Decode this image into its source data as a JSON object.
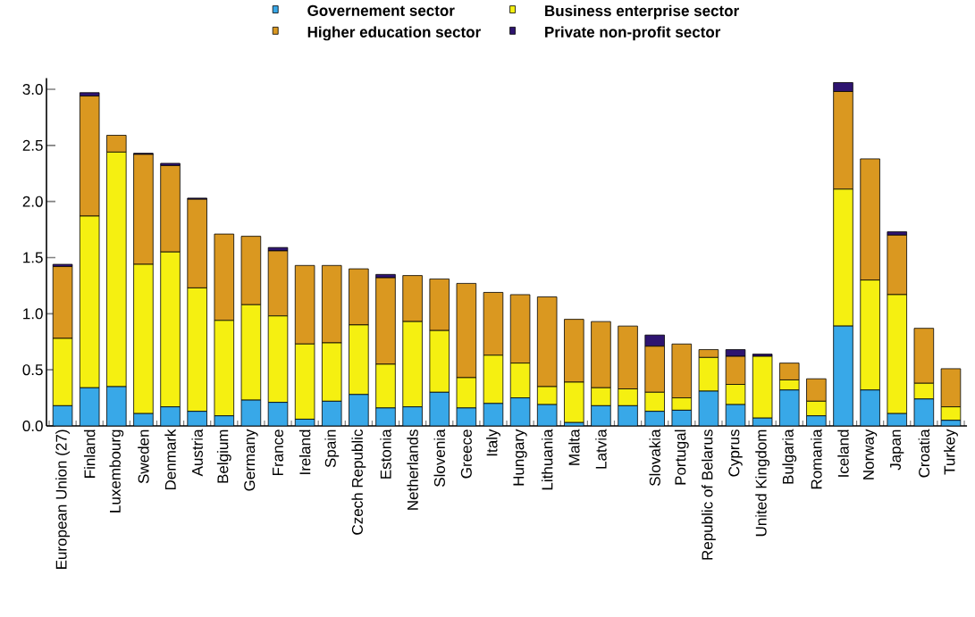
{
  "chart_data": {
    "type": "bar",
    "stacked": true,
    "legend": "top",
    "grid": false,
    "categories": [
      "European Union (27)",
      "Finland",
      "Luxembourg",
      "Sweden",
      "Denmark",
      "Austria",
      "Belgium",
      "Germany",
      "France",
      "Ireland",
      "Spain",
      "Czech Republic",
      "Estonia",
      "Netherlands",
      "Slovenia",
      "Greece",
      "Italy",
      "Hungary",
      "Lithuania",
      "Malta",
      "Latvia",
      null,
      "Slovakia",
      "Portugal",
      "Republic of Belarus",
      "Cyprus",
      "United Kingdom",
      "Bulgaria",
      "Romania",
      "Iceland",
      "Norway",
      "Japan",
      "Croatia",
      "Turkey"
    ],
    "series": [
      {
        "name": "Governement sector",
        "color": "#38a8e8",
        "values": [
          0.18,
          0.34,
          0.35,
          0.11,
          0.17,
          0.13,
          0.09,
          0.23,
          0.21,
          0.06,
          0.22,
          0.28,
          0.16,
          0.17,
          0.3,
          0.16,
          0.2,
          0.25,
          0.19,
          0.03,
          0.18,
          0.18,
          0.13,
          0.14,
          0.31,
          0.19,
          0.07,
          0.32,
          0.09,
          0.89,
          0.32,
          0.11,
          0.24,
          0.05
        ]
      },
      {
        "name": "Business enterprise sector",
        "color": "#f5f011",
        "values": [
          0.6,
          1.53,
          2.09,
          1.33,
          1.38,
          1.1,
          0.85,
          0.85,
          0.77,
          0.67,
          0.52,
          0.62,
          0.39,
          0.76,
          0.55,
          0.27,
          0.43,
          0.31,
          0.16,
          0.36,
          0.16,
          0.15,
          0.17,
          0.11,
          0.3,
          0.18,
          0.55,
          0.09,
          0.13,
          1.22,
          0.98,
          1.06,
          0.14,
          0.12
        ]
      },
      {
        "name": "Higher education sector",
        "color": "#da9820",
        "values": [
          0.64,
          1.07,
          0.15,
          0.98,
          0.77,
          0.79,
          0.77,
          0.61,
          0.58,
          0.7,
          0.69,
          0.5,
          0.77,
          0.41,
          0.46,
          0.84,
          0.56,
          0.61,
          0.8,
          0.56,
          0.59,
          0.56,
          0.41,
          0.48,
          0.07,
          0.25,
          null,
          0.15,
          0.2,
          0.87,
          1.08,
          0.53,
          0.49,
          0.34
        ]
      },
      {
        "name": "Private non-profit  sector",
        "color": "#2e1470",
        "values": [
          0.02,
          0.03,
          null,
          0.01,
          0.02,
          0.01,
          null,
          null,
          0.03,
          null,
          null,
          null,
          0.03,
          null,
          null,
          null,
          null,
          null,
          null,
          null,
          null,
          null,
          0.1,
          null,
          null,
          0.06,
          0.02,
          null,
          null,
          0.08,
          null,
          0.03,
          null,
          null
        ]
      }
    ],
    "ylim": [
      0,
      3.1
    ],
    "yticks": [
      {
        "value": 0,
        "label": "0.0"
      },
      {
        "value": 0.5,
        "label": "0.5"
      },
      {
        "value": 1,
        "label": "1.0"
      },
      {
        "value": 1.5,
        "label": "1.5"
      },
      {
        "value": 2,
        "label": "2.0"
      },
      {
        "value": 2.5,
        "label": "2.5"
      },
      {
        "value": 3,
        "label": "3.0"
      }
    ]
  }
}
